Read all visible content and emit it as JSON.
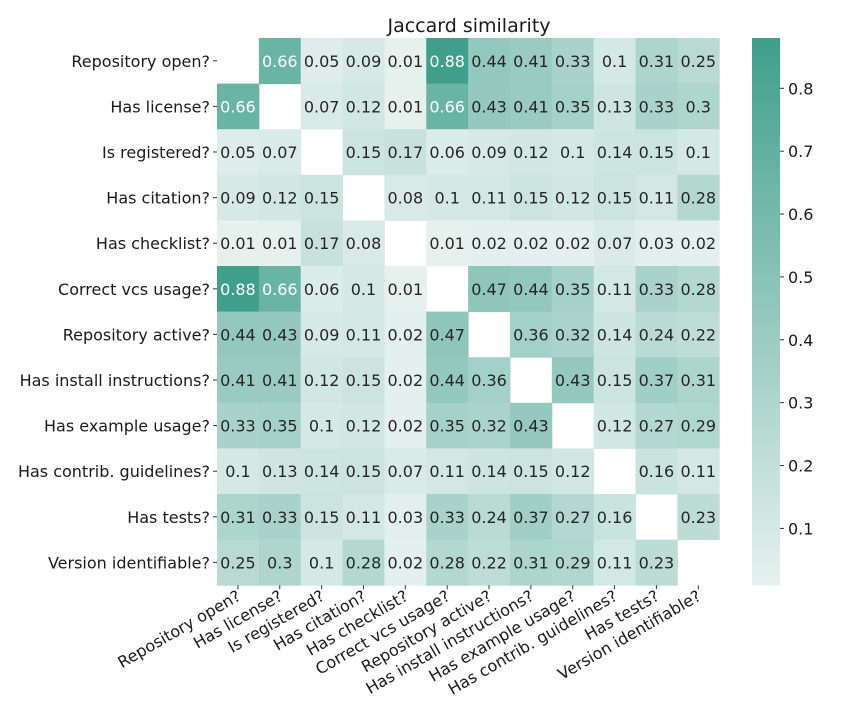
{
  "chart_data": {
    "type": "heatmap",
    "title": "Jaccard similarity",
    "labels": [
      "Repository open?",
      "Has license?",
      "Is registered?",
      "Has citation?",
      "Has checklist?",
      "Correct vcs usage?",
      "Repository active?",
      "Has install instructions?",
      "Has example usage?",
      "Has contrib. guidelines?",
      "Has tests?",
      "Version identifiable?"
    ],
    "values": [
      [
        null,
        0.66,
        0.05,
        0.09,
        0.01,
        0.88,
        0.44,
        0.41,
        0.33,
        0.1,
        0.31,
        0.25
      ],
      [
        0.66,
        null,
        0.07,
        0.12,
        0.01,
        0.66,
        0.43,
        0.41,
        0.35,
        0.13,
        0.33,
        0.3
      ],
      [
        0.05,
        0.07,
        null,
        0.15,
        0.17,
        0.06,
        0.09,
        0.12,
        0.1,
        0.14,
        0.15,
        0.1
      ],
      [
        0.09,
        0.12,
        0.15,
        null,
        0.08,
        0.1,
        0.11,
        0.15,
        0.12,
        0.15,
        0.11,
        0.28
      ],
      [
        0.01,
        0.01,
        0.17,
        0.08,
        null,
        0.01,
        0.02,
        0.02,
        0.02,
        0.07,
        0.03,
        0.02
      ],
      [
        0.88,
        0.66,
        0.06,
        0.1,
        0.01,
        null,
        0.47,
        0.44,
        0.35,
        0.11,
        0.33,
        0.28
      ],
      [
        0.44,
        0.43,
        0.09,
        0.11,
        0.02,
        0.47,
        null,
        0.36,
        0.32,
        0.14,
        0.24,
        0.22
      ],
      [
        0.41,
        0.41,
        0.12,
        0.15,
        0.02,
        0.44,
        0.36,
        null,
        0.43,
        0.15,
        0.37,
        0.31
      ],
      [
        0.33,
        0.35,
        0.1,
        0.12,
        0.02,
        0.35,
        0.32,
        0.43,
        null,
        0.12,
        0.27,
        0.29
      ],
      [
        0.1,
        0.13,
        0.14,
        0.15,
        0.07,
        0.11,
        0.14,
        0.15,
        0.12,
        null,
        0.16,
        0.11
      ],
      [
        0.31,
        0.33,
        0.15,
        0.11,
        0.03,
        0.33,
        0.24,
        0.37,
        0.27,
        0.16,
        null,
        0.23
      ],
      [
        0.25,
        0.3,
        0.1,
        0.28,
        0.02,
        0.28,
        0.22,
        0.31,
        0.29,
        0.11,
        0.23,
        null
      ]
    ],
    "colorbar": {
      "range": [
        0.01,
        0.88
      ],
      "ticks": [
        "0.1",
        "0.2",
        "0.3",
        "0.4",
        "0.5",
        "0.6",
        "0.7",
        "0.8"
      ],
      "color_low": "#e6f1ee",
      "color_high": "#3f9f8c"
    },
    "grid": false
  }
}
